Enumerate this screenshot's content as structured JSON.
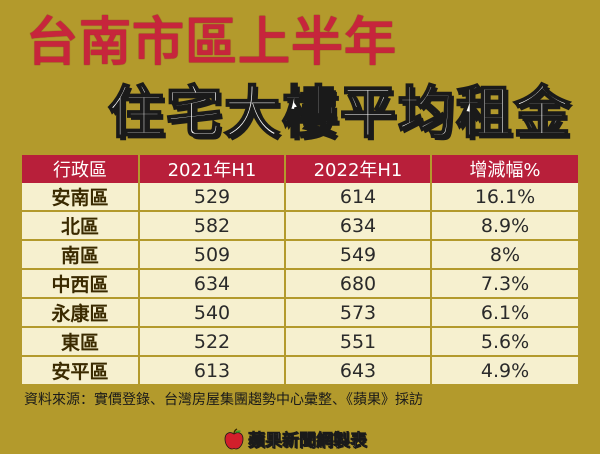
{
  "title_line1": "台南市區上半年",
  "title_line2": "住宅大樓平均租金",
  "chart_data": {
    "type": "table",
    "columns": [
      "行政區",
      "2021年H1",
      "2022年H1",
      "增減幅%"
    ],
    "rows": [
      [
        "安南區",
        "529",
        "614",
        "16.1%"
      ],
      [
        "北區",
        "582",
        "634",
        "8.9%"
      ],
      [
        "南區",
        "509",
        "549",
        "8%"
      ],
      [
        "中西區",
        "634",
        "680",
        "7.3%"
      ],
      [
        "永康區",
        "540",
        "573",
        "6.1%"
      ],
      [
        "東區",
        "522",
        "551",
        "5.6%"
      ],
      [
        "安平區",
        "613",
        "643",
        "4.9%"
      ]
    ]
  },
  "source": "資料來源：實價登錄、台灣房屋集團趨勢中心彙整、《蘋果》採訪",
  "logo": {
    "text": "蘋果新聞網製表",
    "icon": "apple-icon"
  },
  "colors": {
    "background": "#b39a2c",
    "header": "#b81f3a",
    "cell": "#f6f0cf",
    "title_red": "#c7253c"
  }
}
